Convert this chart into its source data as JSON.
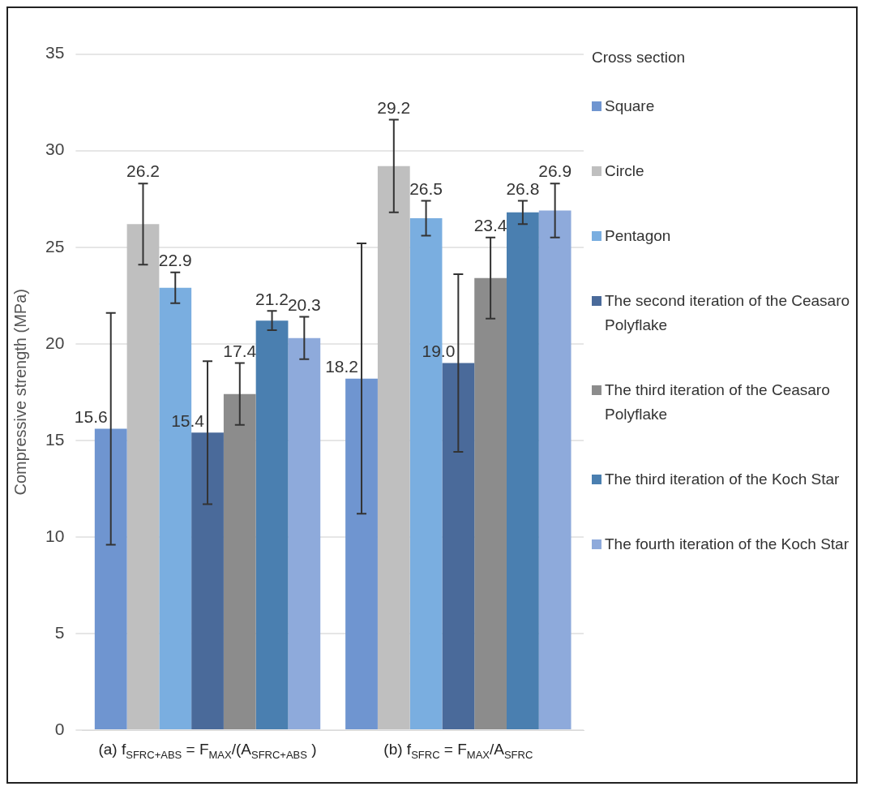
{
  "chart_data": {
    "type": "bar",
    "ylabel": "Compressive strength (MPa)",
    "legend_title": "Cross section",
    "categories": [
      "(a) f$_{SFRC+ABS}$ = F$_{MAX}$/(A$_{SFRC+ABS}$ )",
      "(b) f$_{SFRC}$ = F$_{MAX}$/A$_{SFRC}$"
    ],
    "series": [
      {
        "name": "Square",
        "color": "#6f95d0",
        "values": [
          15.6,
          18.2
        ],
        "value_labels": [
          "15.6",
          "18.2"
        ],
        "errors": [
          6.0,
          7.0
        ]
      },
      {
        "name": "Circle",
        "color": "#bfbfbf",
        "values": [
          26.2,
          29.2
        ],
        "value_labels": [
          "26.2",
          "29.2"
        ],
        "errors": [
          2.1,
          2.4
        ]
      },
      {
        "name": "Pentagon",
        "color": "#7aaee0",
        "values": [
          22.9,
          26.5
        ],
        "value_labels": [
          "22.9",
          "26.5"
        ],
        "errors": [
          0.8,
          0.9
        ]
      },
      {
        "name": "The second iteration of the Ceasaro Polyflake",
        "color": "#4a6a9a",
        "values": [
          15.4,
          19.0
        ],
        "value_labels": [
          "15.4",
          "19.0"
        ],
        "errors": [
          3.7,
          4.6
        ]
      },
      {
        "name": "The third iteration of the Ceasaro Polyflake",
        "color": "#8c8c8c",
        "values": [
          17.4,
          23.4
        ],
        "value_labels": [
          "17.4",
          "23.4"
        ],
        "errors": [
          1.6,
          2.1
        ]
      },
      {
        "name": "The third iteration of the Koch Star",
        "color": "#4a7fb0",
        "values": [
          21.2,
          26.8
        ],
        "value_labels": [
          "21.2",
          "26.8"
        ],
        "errors": [
          0.5,
          0.6
        ]
      },
      {
        "name": "The fourth iteration of the Koch Star",
        "color": "#8eaadb",
        "values": [
          20.3,
          26.9
        ],
        "value_labels": [
          "20.3",
          "26.9"
        ],
        "errors": [
          1.1,
          1.4
        ]
      }
    ],
    "ylim": [
      0,
      35
    ],
    "yticks": [
      0,
      5,
      10,
      15,
      20,
      25,
      30,
      35
    ],
    "grid": "y",
    "legend": "right"
  }
}
